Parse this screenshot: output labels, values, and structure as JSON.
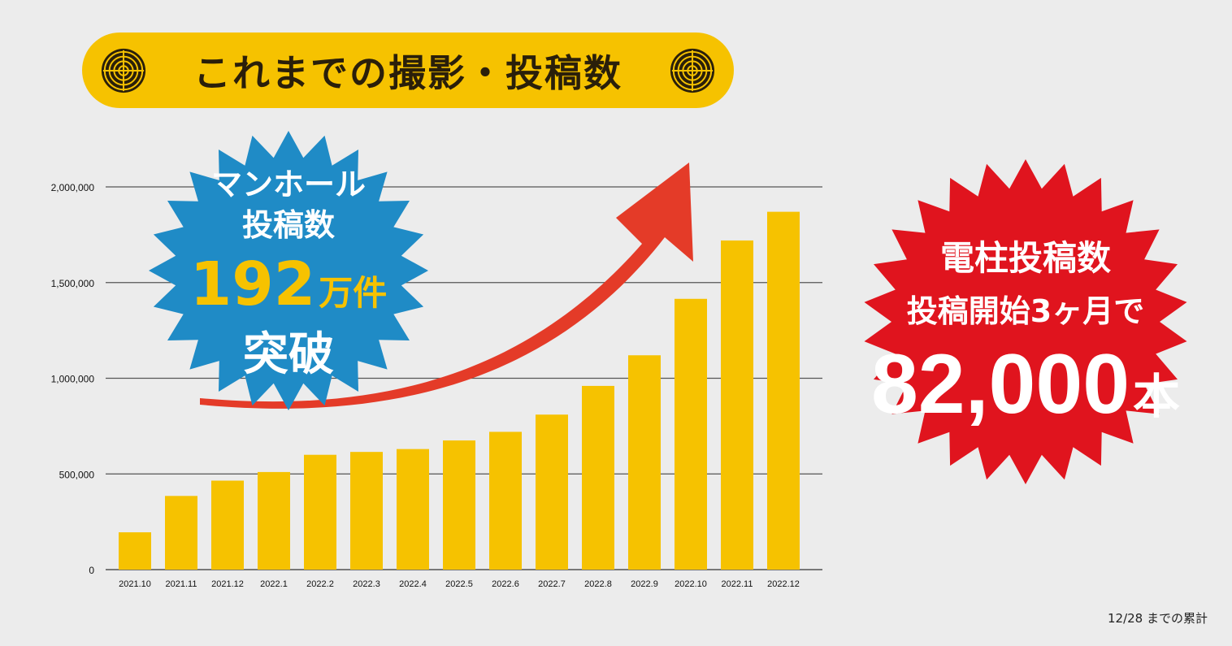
{
  "title": "これまでの撮影・投稿数",
  "footnote": "12/28 までの累計",
  "badge_blue": {
    "line1": "マンホール",
    "line2": "投稿数",
    "number": "192",
    "unit": "万件",
    "line4": "突破"
  },
  "badge_red": {
    "line1": "電柱投稿数",
    "line2": "投稿開始3ヶ月で",
    "number": "82,000",
    "unit": "本"
  },
  "colors": {
    "background": "#ececec",
    "bar": "#f6c200",
    "title_pill": "#f6c200",
    "blue_badge": "#1f8bc6",
    "red_badge": "#e0141e",
    "arrow": "#e43b28",
    "number_yellow": "#f6c200"
  },
  "icons": [
    "manhole-cover-icon",
    "manhole-cover-icon"
  ],
  "chart_data": {
    "type": "bar",
    "categories": [
      "2021.10",
      "2021.11",
      "2021.12",
      "2022.1",
      "2022.2",
      "2022.3",
      "2022.4",
      "2022.5",
      "2022.6",
      "2022.7",
      "2022.8",
      "2022.9",
      "2022.10",
      "2022.11",
      "2022.12"
    ],
    "values": [
      195000,
      385000,
      465000,
      510000,
      600000,
      615000,
      630000,
      675000,
      720000,
      810000,
      960000,
      1120000,
      1415000,
      1720000,
      1870000
    ],
    "ylim": [
      0,
      2000000
    ],
    "yticks": [
      0,
      500000,
      1000000,
      1500000,
      2000000
    ],
    "ytick_labels": [
      "0",
      "500,000",
      "1,000,000",
      "1,500,000",
      "2,000,000"
    ],
    "grid": true,
    "title": "",
    "xlabel": "",
    "ylabel": ""
  }
}
